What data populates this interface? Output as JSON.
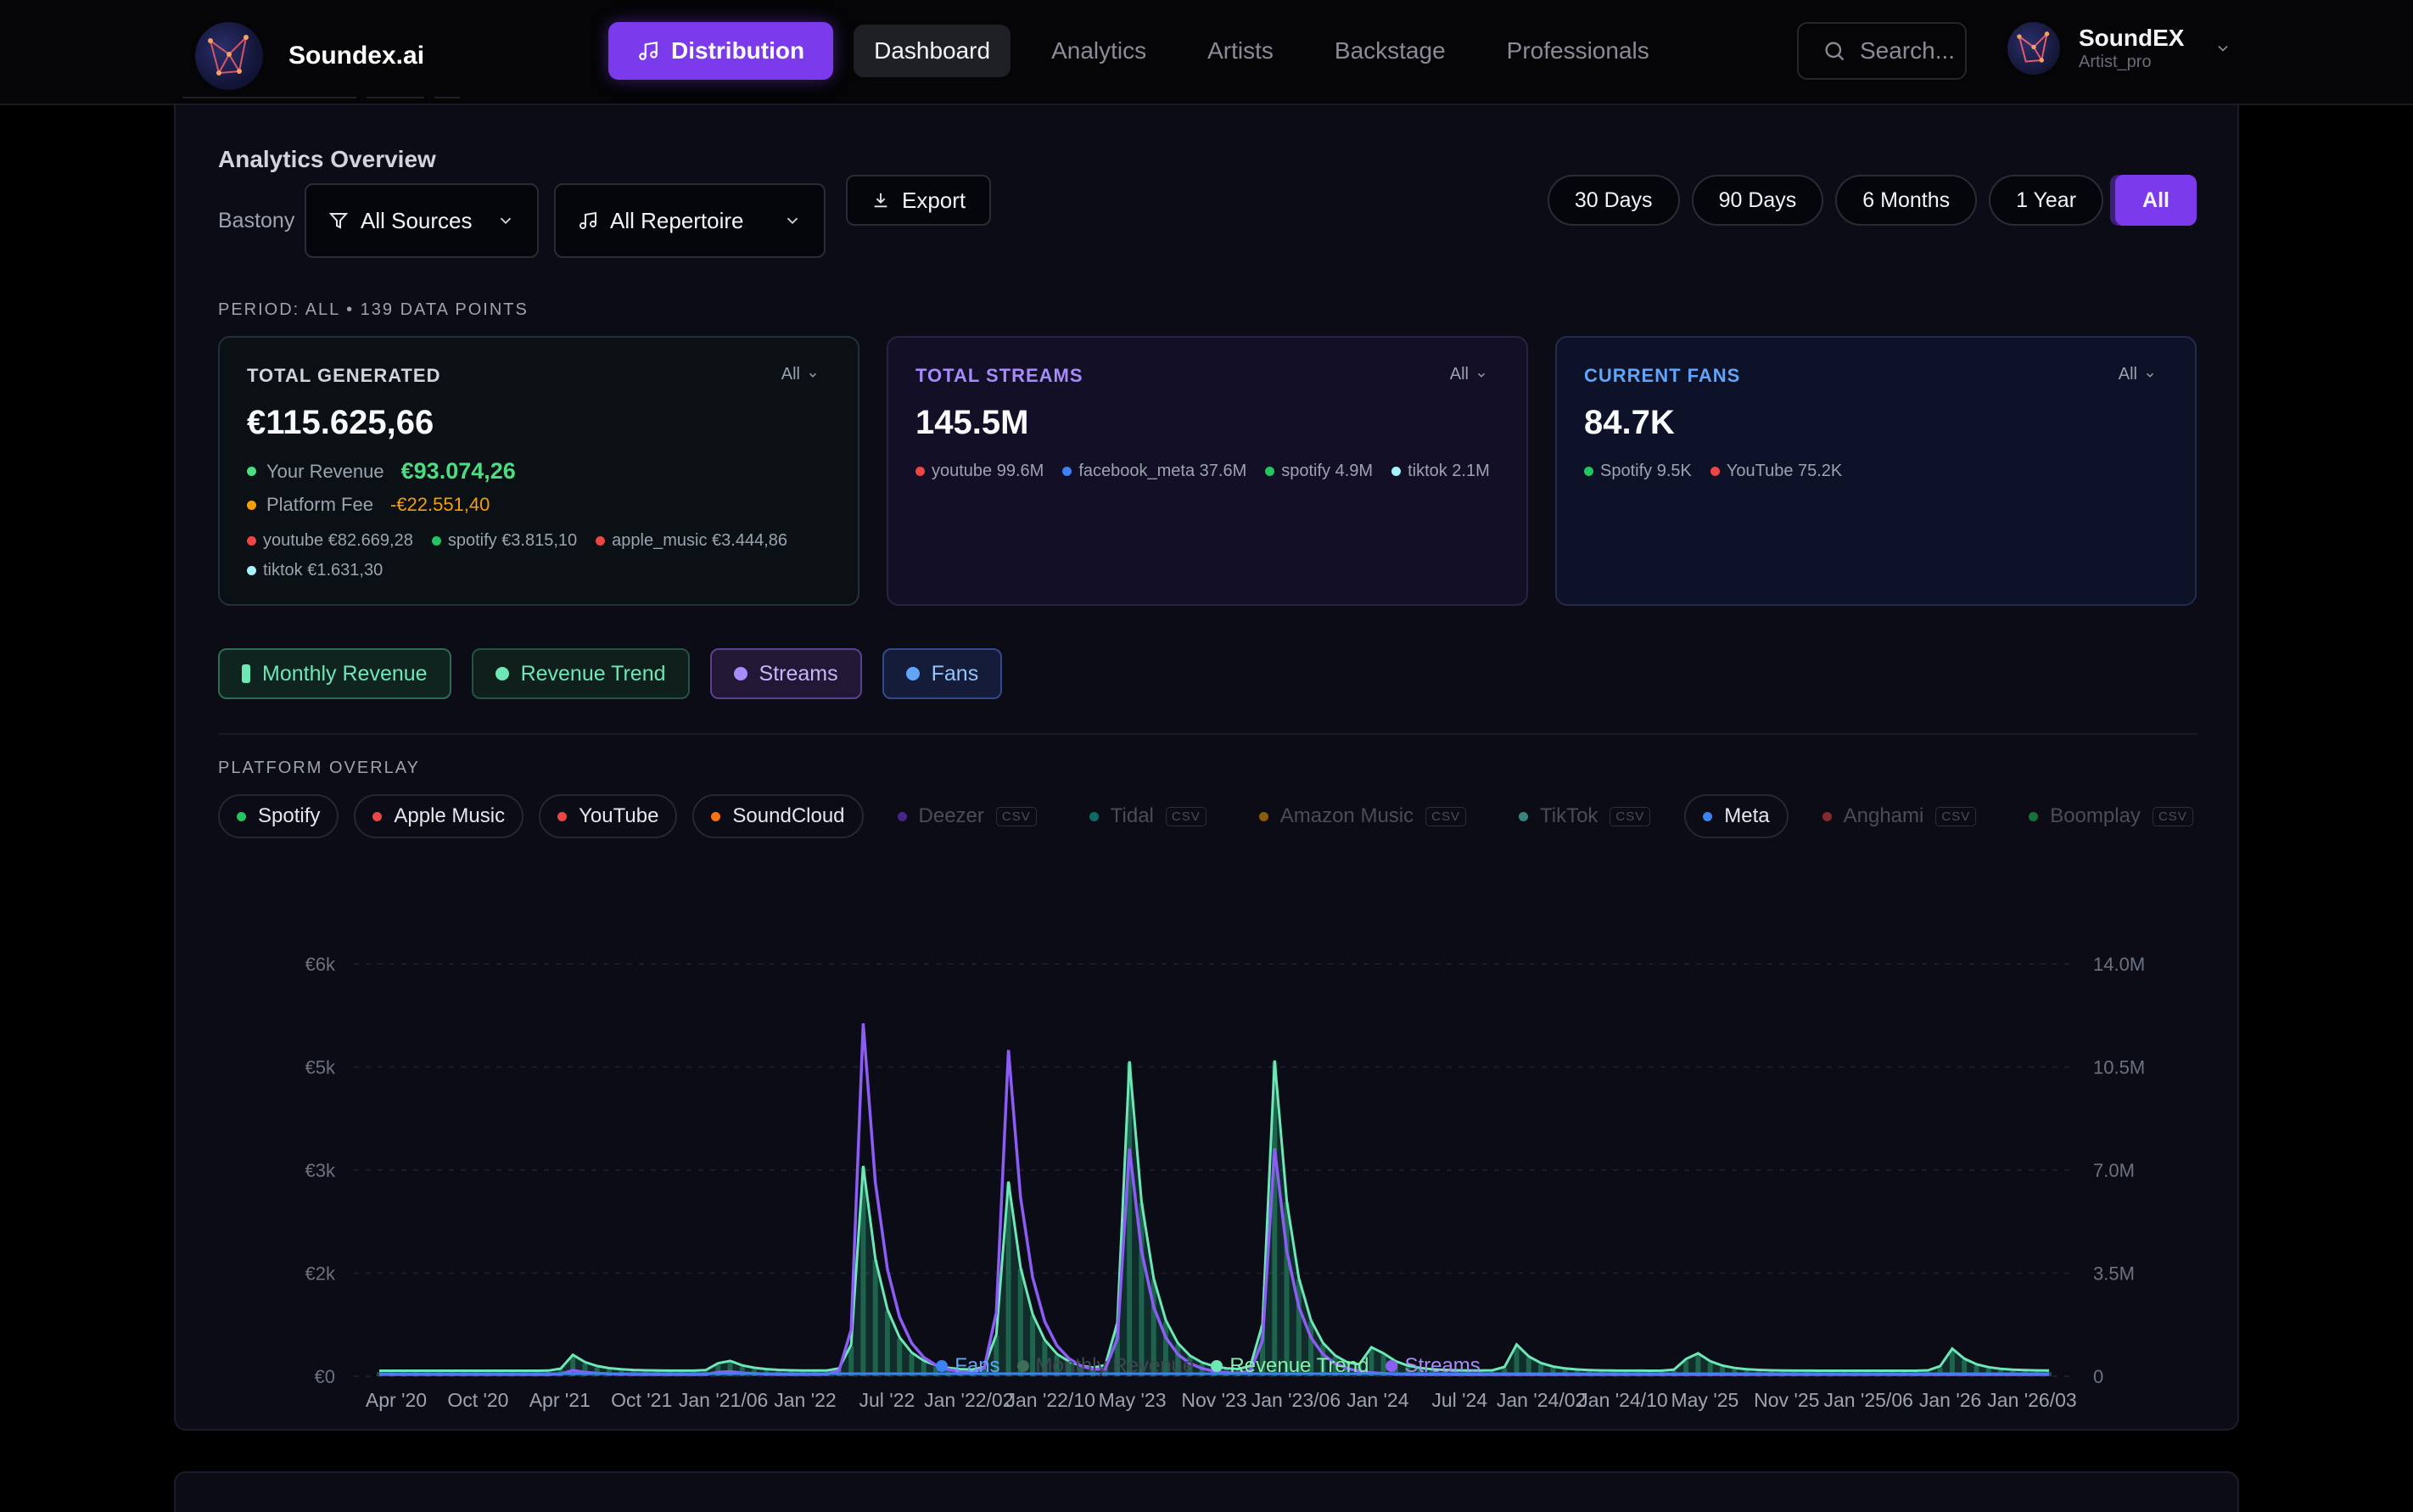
{
  "brand": {
    "name": "Soundex.ai"
  },
  "nav": {
    "distribution": "Distribution",
    "items": [
      "Dashboard",
      "Analytics",
      "Artists",
      "Backstage",
      "Professionals"
    ]
  },
  "search": {
    "placeholder": "Search..."
  },
  "user": {
    "name": "SoundEX",
    "role": "Artist_pro"
  },
  "analytics": {
    "title": "Analytics Overview",
    "filter_label": "Bastony",
    "sources_dropdown": "All Sources",
    "repertoire_dropdown": "All Repertoire",
    "export": "Export",
    "periods": [
      "30 Days",
      "90 Days",
      "6 Months",
      "1 Year",
      "All"
    ],
    "active_period": "All",
    "period_info": "PERIOD: ALL • 139 DATA POINTS"
  },
  "stats": {
    "generated": {
      "title": "TOTAL GENERATED",
      "filter": "All",
      "value": "€115.625,66",
      "revenue_label": "Your Revenue",
      "revenue_value": "€93.074,26",
      "fee_label": "Platform Fee",
      "fee_value": "-€22.551,40",
      "breakdown": [
        {
          "label": "youtube €82.669,28",
          "color": "#ef4444"
        },
        {
          "label": "spotify €3.815,10",
          "color": "#22c55e"
        },
        {
          "label": "apple_music €3.444,86",
          "color": "#ef4444"
        },
        {
          "label": "tiktok €1.631,30",
          "color": "#a5f3fc"
        }
      ]
    },
    "streams": {
      "title": "TOTAL STREAMS",
      "filter": "All",
      "value": "145.5M",
      "breakdown": [
        {
          "label": "youtube 99.6M",
          "color": "#ef4444"
        },
        {
          "label": "facebook_meta 37.6M",
          "color": "#3b82f6"
        },
        {
          "label": "spotify 4.9M",
          "color": "#22c55e"
        },
        {
          "label": "tiktok 2.1M",
          "color": "#a5f3fc"
        }
      ]
    },
    "fans": {
      "title": "CURRENT FANS",
      "filter": "All",
      "value": "84.7K",
      "breakdown": [
        {
          "label": "Spotify 9.5K",
          "color": "#22c55e"
        },
        {
          "label": "YouTube 75.2K",
          "color": "#ef4444"
        }
      ]
    }
  },
  "toggles": {
    "monthly_revenue": "Monthly Revenue",
    "revenue_trend": "Revenue Trend",
    "streams": "Streams",
    "fans": "Fans"
  },
  "overlay": {
    "title": "PLATFORM OVERLAY",
    "csv_tag": "CSV",
    "platforms": [
      {
        "name": "Spotify",
        "color": "#22c55e",
        "enabled": true
      },
      {
        "name": "Apple Music",
        "color": "#ef4444",
        "enabled": true
      },
      {
        "name": "YouTube",
        "color": "#ef4444",
        "enabled": true
      },
      {
        "name": "SoundCloud",
        "color": "#f97316",
        "enabled": true
      },
      {
        "name": "Deezer",
        "color": "#7c3aed",
        "enabled": false
      },
      {
        "name": "Tidal",
        "color": "#14b8a6",
        "enabled": false
      },
      {
        "name": "Amazon Music",
        "color": "#f59e0b",
        "enabled": false
      },
      {
        "name": "TikTok",
        "color": "#5eead4",
        "enabled": false
      },
      {
        "name": "Meta",
        "color": "#3b82f6",
        "enabled": true
      },
      {
        "name": "Anghami",
        "color": "#ef4444",
        "enabled": false
      },
      {
        "name": "Boomplay",
        "color": "#22c55e",
        "enabled": false
      }
    ]
  },
  "chart_data": {
    "type": "line",
    "left_axis_ticks": [
      "€6k",
      "€5k",
      "€3k",
      "€2k",
      "€0"
    ],
    "right_axis_ticks": [
      "14.0M",
      "10.5M",
      "7.0M",
      "3.5M",
      "0"
    ],
    "x_tick_labels": [
      "Apr '20",
      "Oct '20",
      "Apr '21",
      "Oct '21",
      "Jan '21/06",
      "Jan '22",
      "Jul '22",
      "Jan '22/02",
      "Jan '22/10",
      "May '23",
      "Nov '23",
      "Jan '23/06",
      "Jan '24",
      "Jul '24",
      "Jan '24/02",
      "Jan '24/10",
      "May '25",
      "Nov '25",
      "Jan '25/06",
      "Jan '26",
      "Jan '26/03"
    ],
    "revenue_ylim": [
      0,
      6000
    ],
    "streams_ylim": [
      0,
      14000000
    ],
    "points": 139,
    "series": [
      {
        "name": "Monthly Revenue",
        "axis": "left",
        "color": "#3f6b5a",
        "peaks": [
          {
            "x": 0.115,
            "value": 250
          },
          {
            "x": 0.205,
            "value": 220
          },
          {
            "x": 0.289,
            "value": 3200
          },
          {
            "x": 0.375,
            "value": 3200
          },
          {
            "x": 0.448,
            "value": 5000
          },
          {
            "x": 0.535,
            "value": 5000
          },
          {
            "x": 0.595,
            "value": 400
          },
          {
            "x": 0.68,
            "value": 420
          },
          {
            "x": 0.785,
            "value": 380
          },
          {
            "x": 0.94,
            "value": 380
          }
        ]
      },
      {
        "name": "Revenue Trend",
        "axis": "left",
        "color": "#6ee7b7",
        "peaks": [
          {
            "x": 0.115,
            "value": 250
          },
          {
            "x": 0.205,
            "value": 220
          },
          {
            "x": 0.289,
            "value": 3200
          },
          {
            "x": 0.375,
            "value": 3200
          },
          {
            "x": 0.448,
            "value": 5000
          },
          {
            "x": 0.535,
            "value": 5000
          },
          {
            "x": 0.595,
            "value": 400
          },
          {
            "x": 0.68,
            "value": 420
          },
          {
            "x": 0.785,
            "value": 380
          },
          {
            "x": 0.94,
            "value": 380
          }
        ]
      },
      {
        "name": "Streams",
        "axis": "right",
        "color": "#8b5cf6",
        "peaks": [
          {
            "x": 0.289,
            "value": 12800000
          },
          {
            "x": 0.375,
            "value": 12800000
          },
          {
            "x": 0.448,
            "value": 8500000
          },
          {
            "x": 0.535,
            "value": 8500000
          },
          {
            "x": 0.115,
            "value": 150000
          },
          {
            "x": 0.205,
            "value": 150000
          }
        ]
      },
      {
        "name": "Fans",
        "axis": "right",
        "color": "#3b82f6",
        "peaks": []
      }
    ],
    "legend": [
      {
        "name": "Fans",
        "color": "#3b82f6",
        "active": true
      },
      {
        "name": "Monthly Revenue",
        "color": "#3f6b5a",
        "active": false
      },
      {
        "name": "Revenue Trend",
        "color": "#6ee7b7",
        "active": true
      },
      {
        "name": "Streams",
        "color": "#8b5cf6",
        "active": true
      }
    ],
    "grid": true,
    "legend_position": "bottom-center"
  }
}
